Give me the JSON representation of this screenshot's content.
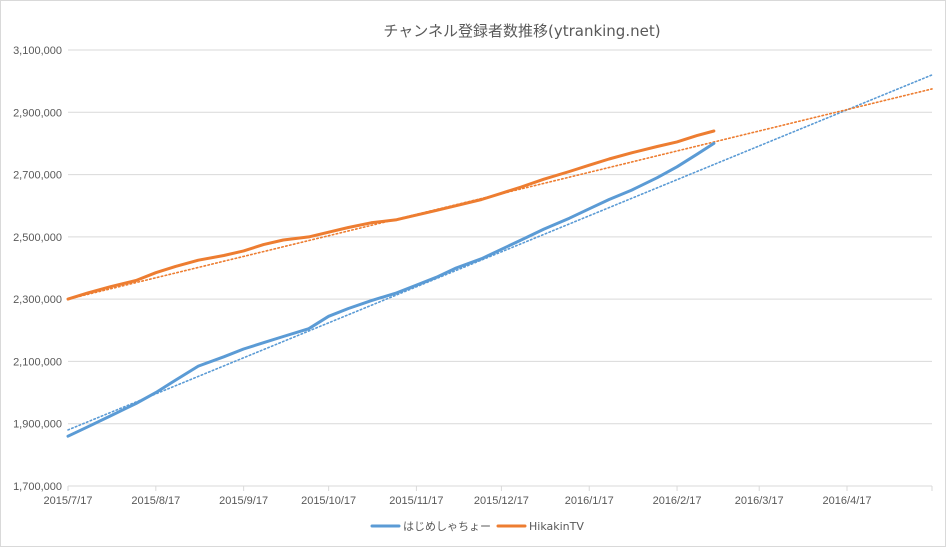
{
  "chart_data": {
    "type": "line",
    "title": "チャンネル登録者数推移(ytranking.net)",
    "xlabel": "",
    "ylabel": "",
    "x_ticks": [
      "2015/7/17",
      "2015/8/17",
      "2015/9/17",
      "2015/10/17",
      "2015/11/17",
      "2015/12/17",
      "2016/1/17",
      "2016/2/17",
      "2016/3/17",
      "2016/4/17"
    ],
    "y_ticks": [
      "1,700,000",
      "1,900,000",
      "2,100,000",
      "2,300,000",
      "2,500,000",
      "2,700,000",
      "2,900,000",
      "3,100,000"
    ],
    "ylim": [
      1700000,
      3100000
    ],
    "xlim": [
      "2015/7/17",
      "2016/5/17"
    ],
    "grid": "horizontal",
    "legend_position": "bottom",
    "series": [
      {
        "name": "はじめしゃちょー",
        "color": "#5b9bd5",
        "x": [
          "2015/7/17",
          "2015/7/24",
          "2015/8/1",
          "2015/8/10",
          "2015/8/17",
          "2015/8/24",
          "2015/9/1",
          "2015/9/10",
          "2015/9/17",
          "2015/9/24",
          "2015/10/1",
          "2015/10/10",
          "2015/10/17",
          "2015/10/24",
          "2015/11/1",
          "2015/11/10",
          "2015/11/17",
          "2015/11/24",
          "2015/12/1",
          "2015/12/10",
          "2015/12/17",
          "2015/12/24",
          "2016/1/1",
          "2016/1/10",
          "2016/1/17",
          "2016/1/24",
          "2016/2/1",
          "2016/2/10",
          "2016/2/17",
          "2016/2/24",
          "2016/3/1"
        ],
        "values": [
          1860000,
          1890000,
          1925000,
          1965000,
          2000000,
          2040000,
          2085000,
          2115000,
          2140000,
          2160000,
          2180000,
          2205000,
          2245000,
          2270000,
          2295000,
          2320000,
          2345000,
          2370000,
          2400000,
          2430000,
          2460000,
          2490000,
          2525000,
          2560000,
          2590000,
          2620000,
          2650000,
          2690000,
          2725000,
          2765000,
          2800000
        ]
      },
      {
        "name": "HikakinTV",
        "color": "#ed7d31",
        "x": [
          "2015/7/17",
          "2015/7/24",
          "2015/8/1",
          "2015/8/10",
          "2015/8/17",
          "2015/8/24",
          "2015/9/1",
          "2015/9/10",
          "2015/9/17",
          "2015/9/24",
          "2015/10/1",
          "2015/10/10",
          "2015/10/17",
          "2015/10/24",
          "2015/11/1",
          "2015/11/10",
          "2015/11/17",
          "2015/11/24",
          "2015/12/1",
          "2015/12/10",
          "2015/12/17",
          "2015/12/24",
          "2016/1/1",
          "2016/1/10",
          "2016/1/17",
          "2016/1/24",
          "2016/2/1",
          "2016/2/10",
          "2016/2/17",
          "2016/2/24",
          "2016/3/1"
        ],
        "values": [
          2300000,
          2320000,
          2340000,
          2360000,
          2385000,
          2405000,
          2425000,
          2440000,
          2455000,
          2475000,
          2490000,
          2500000,
          2515000,
          2530000,
          2545000,
          2555000,
          2570000,
          2585000,
          2600000,
          2620000,
          2640000,
          2660000,
          2685000,
          2710000,
          2730000,
          2750000,
          2770000,
          2790000,
          2805000,
          2825000,
          2840000
        ]
      }
    ],
    "trendlines": [
      {
        "series": "はじめしゃちょー",
        "style": "dotted",
        "x": [
          "2015/7/17",
          "2016/5/17"
        ],
        "values": [
          1880000,
          3020000
        ]
      },
      {
        "series": "HikakinTV",
        "style": "dotted",
        "x": [
          "2015/7/17",
          "2016/5/17"
        ],
        "values": [
          2300000,
          2975000
        ]
      }
    ]
  }
}
